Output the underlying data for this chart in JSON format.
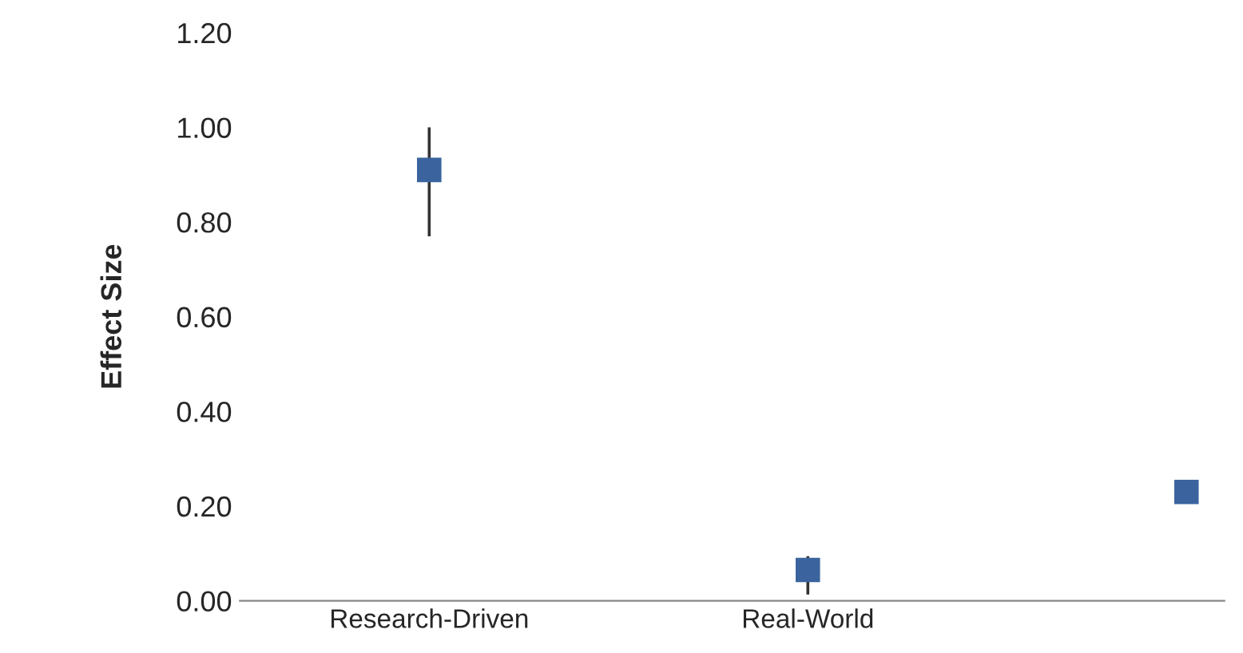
{
  "chart_data": {
    "type": "scatter",
    "ylabel": "Effect Size",
    "categories": [
      "Research-Driven",
      "Real-World",
      null
    ],
    "series": [
      {
        "color": "#3b649e",
        "values": [
          0.91,
          0.065,
          0.23
        ],
        "errors": [
          [
            0.77,
            1.0
          ],
          [
            0.013,
            0.094
          ],
          null
        ]
      }
    ],
    "marker": "square",
    "ylim": [
      0,
      1.2
    ],
    "yticks": [
      {
        "value": 0,
        "label": "0.00"
      },
      {
        "value": 0.2,
        "label": "0.20"
      },
      {
        "value": 0.4,
        "label": "0.40"
      },
      {
        "value": 0.6,
        "label": "0.60"
      },
      {
        "value": 0.8,
        "label": "0.80"
      },
      {
        "value": 1.0,
        "label": "1.00"
      },
      {
        "value": 1.2,
        "label": "1.20"
      }
    ],
    "grid": false,
    "legend": false
  }
}
